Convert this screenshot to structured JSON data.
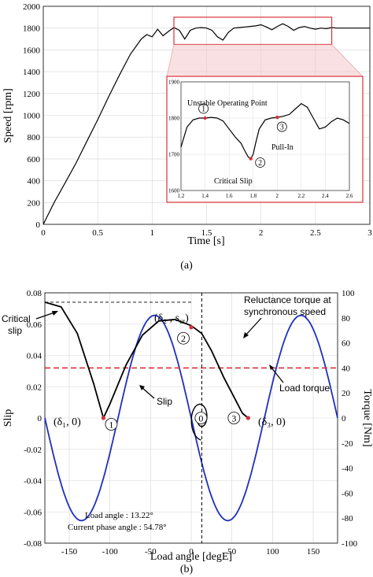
{
  "chart_data": [
    {
      "type": "line",
      "panel_label": "(a)",
      "xlabel": "Time [s]",
      "ylabel": "Speed [rpm]",
      "xlim": [
        0,
        3
      ],
      "ylim": [
        0,
        2000
      ],
      "xticks": [
        "0",
        "0.5",
        "1",
        "1.5",
        "2",
        "2.5",
        "3"
      ],
      "yticks": [
        "0",
        "200",
        "400",
        "600",
        "800",
        "1000",
        "1200",
        "1400",
        "1600",
        "1800",
        "2000"
      ],
      "grid": true,
      "series": [
        {
          "color": "#000000",
          "x": [
            0,
            0.05,
            0.1,
            0.2,
            0.3,
            0.4,
            0.5,
            0.6,
            0.7,
            0.8,
            0.9,
            0.95,
            1.0,
            1.05,
            1.1,
            1.15,
            1.2,
            1.25,
            1.3,
            1.35,
            1.4,
            1.45,
            1.5,
            1.55,
            1.6,
            1.65,
            1.7,
            1.75,
            1.8,
            1.85,
            1.9,
            1.95,
            2.0,
            2.05,
            2.1,
            2.15,
            2.2,
            2.25,
            2.3,
            2.35,
            2.4,
            2.45,
            2.5,
            2.55,
            2.6,
            2.65,
            2.7,
            2.8,
            2.9,
            3.0
          ],
          "y": [
            0,
            100,
            200,
            380,
            560,
            760,
            960,
            1170,
            1370,
            1560,
            1700,
            1740,
            1720,
            1790,
            1730,
            1770,
            1805,
            1780,
            1700,
            1780,
            1800,
            1805,
            1800,
            1780,
            1720,
            1690,
            1760,
            1800,
            1805,
            1810,
            1815,
            1820,
            1830,
            1810,
            1785,
            1815,
            1840,
            1815,
            1780,
            1805,
            1815,
            1800,
            1790,
            1800,
            1795,
            1805,
            1800,
            1800,
            1800,
            1800
          ]
        }
      ],
      "highlight_box": {
        "x": [
          1.2,
          2.65
        ],
        "y": [
          1650,
          1900
        ],
        "color": "#d9313a"
      },
      "inset": {
        "xlim": [
          1.2,
          2.6
        ],
        "ylim": [
          1600,
          1900
        ],
        "xticks": [
          "1.2",
          "1.4",
          "1.6",
          "1.8",
          "2",
          "2.2",
          "2.4",
          "2.6"
        ],
        "yticks": [
          "1600",
          "1700",
          "1800",
          "1900"
        ],
        "x": [
          1.2,
          1.25,
          1.3,
          1.35,
          1.4,
          1.45,
          1.5,
          1.55,
          1.6,
          1.65,
          1.7,
          1.73,
          1.76,
          1.78,
          1.8,
          1.82,
          1.85,
          1.9,
          1.95,
          2.0,
          2.05,
          2.1,
          2.15,
          2.2,
          2.25,
          2.3,
          2.35,
          2.4,
          2.45,
          2.5,
          2.55,
          2.6
        ],
        "y": [
          1720,
          1775,
          1795,
          1800,
          1800,
          1802,
          1800,
          1792,
          1770,
          1748,
          1730,
          1710,
          1692,
          1688,
          1700,
          1730,
          1770,
          1795,
          1800,
          1802,
          1805,
          1810,
          1825,
          1840,
          1830,
          1800,
          1770,
          1775,
          1790,
          1800,
          1795,
          1785
        ],
        "markers": [
          {
            "x": 1.4,
            "y": 1800,
            "label": "Unstable Operating Point",
            "num": "1"
          },
          {
            "x": 1.78,
            "y": 1688,
            "label": "Critical Slip",
            "num": "2"
          },
          {
            "x": 2.0,
            "y": 1802,
            "label": "Pull-In",
            "num": "3"
          }
        ]
      }
    },
    {
      "type": "line",
      "panel_label": "(b)",
      "xlabel": "Load angle [degE]",
      "ylabel": "Slip",
      "ylabel_right": "Torque [Nm]",
      "xlim": [
        -180,
        180
      ],
      "ylim": [
        -0.08,
        0.08
      ],
      "ylim_right": [
        -100,
        100
      ],
      "xticks": [
        "-150",
        "-100",
        "-50",
        "0",
        "50",
        "100",
        "150"
      ],
      "yticks": [
        "-0.08",
        "-0.06",
        "-0.04",
        "-0.02",
        "0",
        "0.02",
        "0.04",
        "0.06",
        "0.08"
      ],
      "yticks_right": [
        "-100",
        "-80",
        "-60",
        "-40",
        "-20",
        "0",
        "20",
        "40",
        "60",
        "80",
        "100"
      ],
      "grid": true,
      "series": [
        {
          "color": "#1f2fbf",
          "kind": "reluctance torque",
          "amplitude_nm": 82,
          "period_deg": 180,
          "phase_deg": 0
        },
        {
          "color": "#d9313a",
          "kind": "load torque",
          "value_nm": 40
        },
        {
          "color": "#000000",
          "kind": "slip trajectory",
          "x": [
            -180,
            -160,
            -140,
            -120,
            -108,
            -100,
            -80,
            -60,
            -40,
            -20,
            0,
            13,
            25,
            40,
            55,
            63,
            70
          ],
          "y": [
            0.074,
            0.071,
            0.054,
            0.022,
            0.0,
            0.009,
            0.034,
            0.053,
            0.062,
            0.063,
            0.059,
            0.054,
            0.043,
            0.026,
            0.011,
            0.003,
            0.0
          ]
        }
      ],
      "spiral": {
        "center": [
          12,
          0
        ],
        "color": "#000000"
      },
      "points": [
        {
          "x": -108,
          "y": 0.0,
          "num": "1"
        },
        {
          "x": 0,
          "y": 0.058,
          "num": "2"
        },
        {
          "x": 70,
          "y": 0.0,
          "num": "3"
        },
        {
          "x": 12,
          "y": 0.0,
          "num": "0"
        }
      ],
      "annotations": {
        "critical_slip": "Critical\nslip",
        "slip": "Slip",
        "reluctance": "Reluctance torque at\nsynchronous speed",
        "load_torque": "Load torque",
        "load_angle": "Load angle : 13.22°",
        "current_phase": "Current phase angle : 54.78°",
        "p1": "(δ₁, 0)",
        "p2": "(δ₂ , s",
        "p2_sub": "cr",
        "p3": "(δ₃, 0)",
        "critical_dash_y": 0.074,
        "vertical_dash_x": 13
      }
    }
  ]
}
